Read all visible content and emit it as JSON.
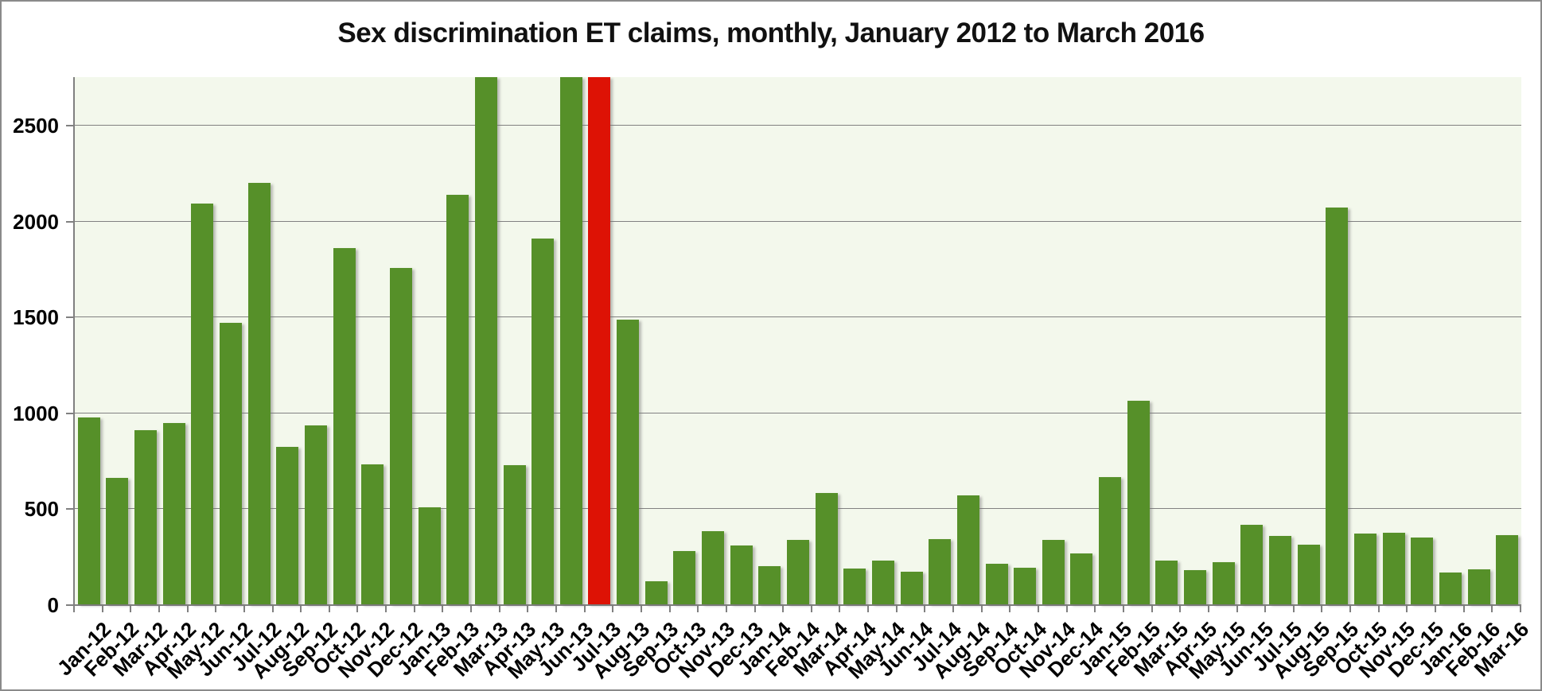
{
  "page": {
    "background": "#ffffff",
    "border_color": "#8a8a8a"
  },
  "chart_data": {
    "type": "bar",
    "title": "Sex discrimination ET claims, monthly, January 2012 to March 2016",
    "xlabel": "",
    "ylabel": "",
    "categories": [
      "Jan-12",
      "Feb-12",
      "Mar-12",
      "Apr-12",
      "May-12",
      "Jun-12",
      "Jul-12",
      "Aug-12",
      "Sep-12",
      "Oct-12",
      "Nov-12",
      "Dec-12",
      "Jan-13",
      "Feb-13",
      "Mar-13",
      "Apr-13",
      "May-13",
      "Jun-13",
      "Jul-13",
      "Aug-13",
      "Sep-13",
      "Oct-13",
      "Nov-13",
      "Dec-13",
      "Jan-14",
      "Feb-14",
      "Mar-14",
      "Apr-14",
      "May-14",
      "Jun-14",
      "Jul-14",
      "Aug-14",
      "Sep-14",
      "Oct-14",
      "Nov-14",
      "Dec-14",
      "Jan-15",
      "Feb-15",
      "Mar-15",
      "Apr-15",
      "May-15",
      "Jun-15",
      "Jul-15",
      "Aug-15",
      "Sep-15",
      "Oct-15",
      "Nov-15",
      "Dec-15",
      "Jan-16",
      "Feb-16",
      "Mar-16"
    ],
    "values": [
      975,
      660,
      910,
      945,
      2090,
      1470,
      2200,
      820,
      935,
      1860,
      730,
      1755,
      505,
      2135,
      2750,
      725,
      1910,
      2750,
      2750,
      1485,
      120,
      280,
      380,
      305,
      200,
      335,
      580,
      185,
      230,
      170,
      340,
      570,
      210,
      190,
      335,
      265,
      665,
      1060,
      230,
      180,
      220,
      415,
      355,
      310,
      2070,
      370,
      375,
      350,
      168,
      182,
      360
    ],
    "highlight_category": "Jul-13",
    "highlight_index": 18,
    "clipped_at_axis_max": [
      "Mar-13",
      "Jun-13",
      "Jul-13"
    ],
    "ylim": [
      0,
      2750
    ],
    "yticks": [
      0,
      500,
      1000,
      1500,
      2000,
      2500
    ],
    "grid": true,
    "legend": "none",
    "colors": {
      "bar_default": "#569029",
      "bar_highlight": "#dd1205",
      "plot_background": "#f3f8ec",
      "gridline": "#818181",
      "axis": "#808080",
      "text": "#000000"
    }
  }
}
